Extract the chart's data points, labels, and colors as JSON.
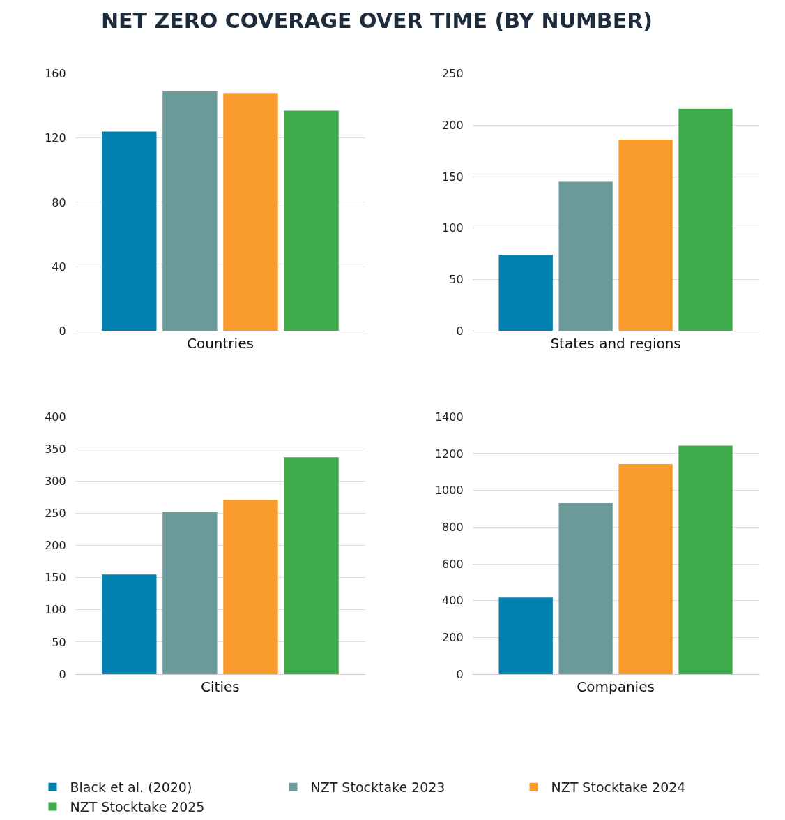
{
  "chart_data": [
    {
      "type": "bar",
      "title": "NET ZERO COVERAGE OVER TIME (BY NUMBER)",
      "categories": [
        "Countries"
      ],
      "ylim": [
        0,
        160
      ],
      "yticks": [
        0,
        40,
        80,
        120,
        160
      ],
      "grid": "y",
      "legend": "bottom",
      "series": [
        {
          "name": "Black et al. (2020)",
          "color": "#0280b0",
          "values": [
            124
          ]
        },
        {
          "name": "NZT Stocktake 2023",
          "color": "#6b9b9a",
          "values": [
            149
          ]
        },
        {
          "name": "NZT Stocktake 2024",
          "color": "#f89b2c",
          "values": [
            148
          ]
        },
        {
          "name": "NZT Stocktake 2025",
          "color": "#3fab4a",
          "values": [
            137
          ]
        }
      ]
    },
    {
      "type": "bar",
      "categories": [
        "States and regions"
      ],
      "ylim": [
        0,
        250
      ],
      "yticks": [
        0,
        50,
        100,
        150,
        200,
        250
      ],
      "grid": "y",
      "series": [
        {
          "color": "#0280b0",
          "values": [
            74
          ]
        },
        {
          "color": "#6b9b9a",
          "values": [
            145
          ]
        },
        {
          "color": "#f89b2c",
          "values": [
            186
          ]
        },
        {
          "color": "#3fab4a",
          "values": [
            216
          ]
        }
      ]
    },
    {
      "type": "bar",
      "categories": [
        "Cities"
      ],
      "ylim": [
        0,
        400
      ],
      "yticks": [
        0,
        50,
        100,
        150,
        200,
        250,
        300,
        350,
        400
      ],
      "grid": "y",
      "series": [
        {
          "color": "#0280b0",
          "values": [
            155
          ]
        },
        {
          "color": "#6b9b9a",
          "values": [
            252
          ]
        },
        {
          "color": "#f89b2c",
          "values": [
            271
          ]
        },
        {
          "color": "#3fab4a",
          "values": [
            337
          ]
        }
      ]
    },
    {
      "type": "bar",
      "categories": [
        "Companies"
      ],
      "ylim": [
        0,
        1400
      ],
      "yticks": [
        0,
        200,
        400,
        600,
        800,
        1000,
        1200,
        1400
      ],
      "grid": "y",
      "series": [
        {
          "color": "#0280b0",
          "values": [
            417
          ]
        },
        {
          "color": "#6b9b9a",
          "values": [
            930
          ]
        },
        {
          "color": "#f89b2c",
          "values": [
            1143
          ]
        },
        {
          "color": "#3fab4a",
          "values": [
            1243
          ]
        }
      ]
    }
  ]
}
